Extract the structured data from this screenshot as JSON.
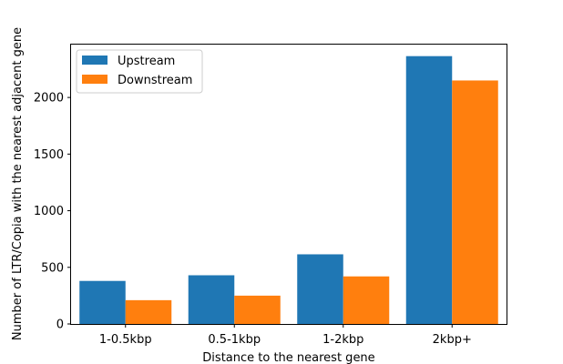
{
  "chart_data": {
    "type": "bar",
    "title": "",
    "xlabel": "Distance to the nearest gene",
    "ylabel": "Number of LTR/Copia with the nearest adjacent gene",
    "categories": [
      "1-0.5kbp",
      "0.5-1kbp",
      "1-2kbp",
      "2kbp+"
    ],
    "series": [
      {
        "name": "Upstream",
        "color": "#1f77b4",
        "values": [
          380,
          430,
          615,
          2365
        ]
      },
      {
        "name": "Downstream",
        "color": "#ff7f0e",
        "values": [
          210,
          250,
          420,
          2150
        ]
      }
    ],
    "yticks": [
      0,
      500,
      1000,
      1500,
      2000
    ],
    "ylim": [
      0,
      2475
    ],
    "legend": "top-left",
    "grid": false
  }
}
